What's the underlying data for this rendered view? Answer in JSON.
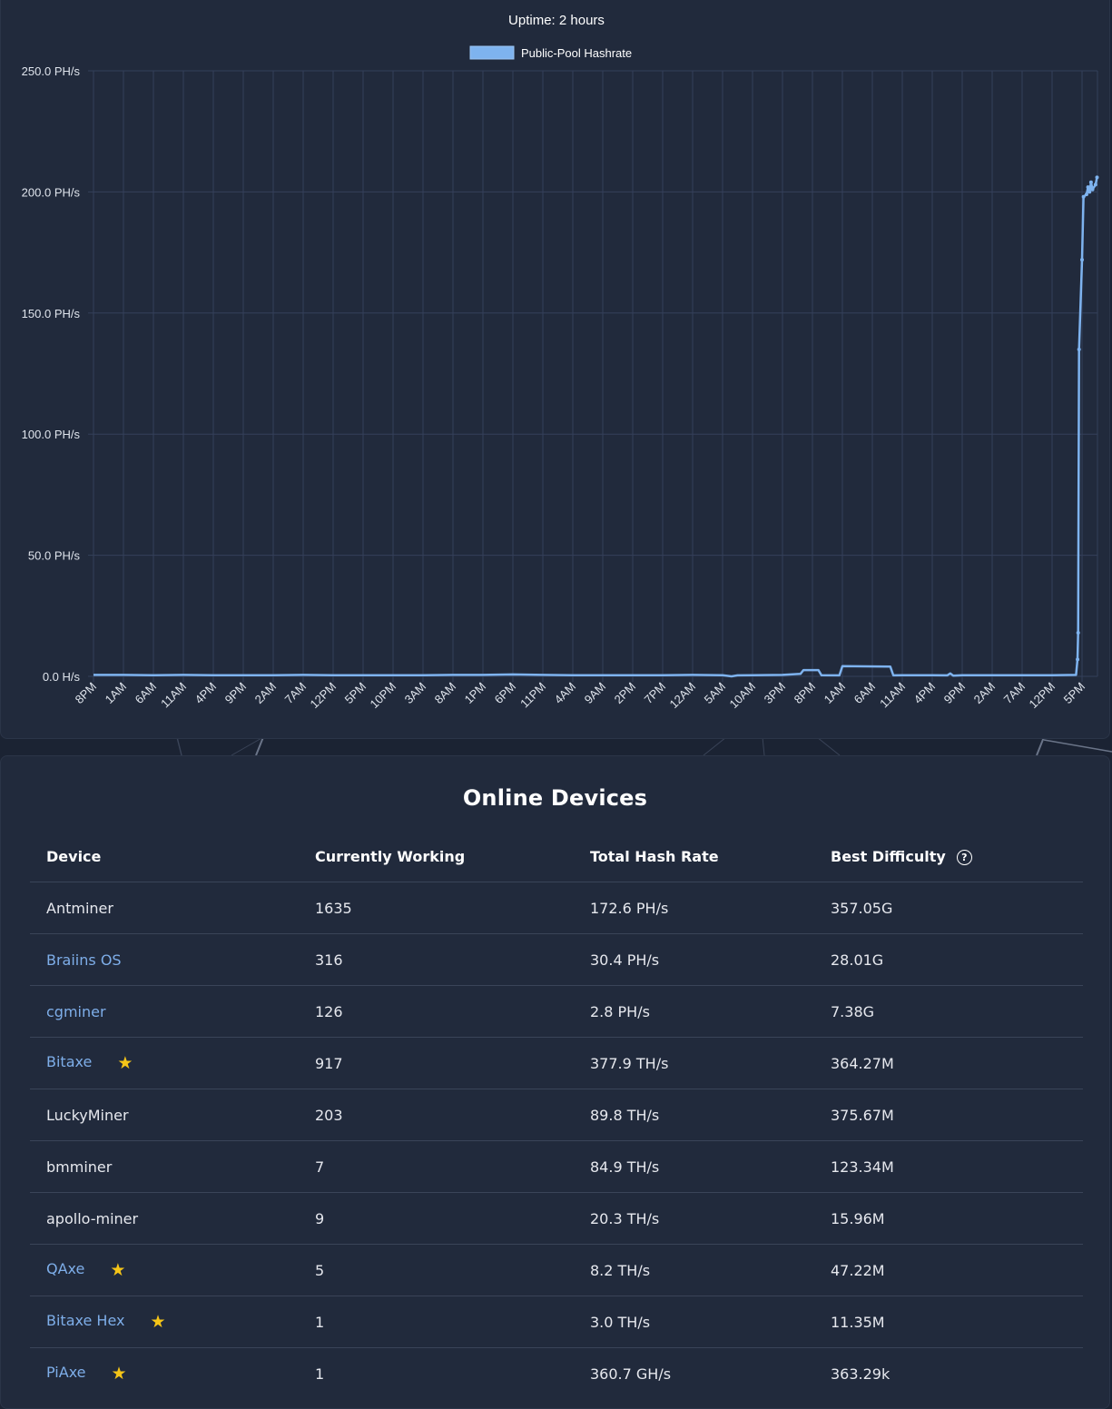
{
  "chart": {
    "title": "Uptime: 2 hours",
    "legend": "Public-Pool Hashrate"
  },
  "chart_data": {
    "type": "line",
    "title": "Uptime: 2 hours",
    "series": [
      {
        "name": "Public-Pool Hashrate",
        "color": "#7eb3ef"
      }
    ],
    "y_unit": "PH/s",
    "ylim": [
      0,
      250
    ],
    "y_ticks": [
      0,
      50,
      100,
      150,
      200,
      250
    ],
    "y_tick_labels": [
      "0.0 H/s",
      "50.0 PH/s",
      "100.0 PH/s",
      "150.0 PH/s",
      "200.0 PH/s",
      "250.0 PH/s"
    ],
    "x_tick_labels": [
      "8PM",
      "1AM",
      "6AM",
      "11AM",
      "4PM",
      "9PM",
      "2AM",
      "7AM",
      "12PM",
      "5PM",
      "10PM",
      "3AM",
      "8AM",
      "1PM",
      "6PM",
      "11PM",
      "4AM",
      "9AM",
      "2PM",
      "7PM",
      "12AM",
      "5AM",
      "10AM",
      "3PM",
      "8PM",
      "1AM",
      "6AM",
      "11AM",
      "4PM",
      "9PM",
      "2AM",
      "7AM",
      "12PM",
      "5PM"
    ],
    "points": [
      [
        0,
        0.6
      ],
      [
        1,
        0.6
      ],
      [
        2,
        0.5
      ],
      [
        3,
        0.6
      ],
      [
        4,
        0.5
      ],
      [
        5,
        0.5
      ],
      [
        6,
        0.5
      ],
      [
        7,
        0.6
      ],
      [
        8,
        0.5
      ],
      [
        9,
        0.5
      ],
      [
        10,
        0.5
      ],
      [
        11,
        0.5
      ],
      [
        12,
        0.6
      ],
      [
        13,
        0.6
      ],
      [
        14,
        0.8
      ],
      [
        15,
        0.6
      ],
      [
        16,
        0.5
      ],
      [
        17,
        0.5
      ],
      [
        18,
        0.5
      ],
      [
        19,
        0.5
      ],
      [
        20,
        0.6
      ],
      [
        21,
        0.5
      ],
      [
        21.3,
        0.0
      ],
      [
        21.5,
        0.4
      ],
      [
        22,
        0.5
      ],
      [
        23,
        0.6
      ],
      [
        23.6,
        1.0
      ],
      [
        23.7,
        2.6
      ],
      [
        24.2,
        2.6
      ],
      [
        24.3,
        0.5
      ],
      [
        24.9,
        0.4
      ],
      [
        25.0,
        4.2
      ],
      [
        26.6,
        4.0
      ],
      [
        26.7,
        0.4
      ],
      [
        27,
        0.5
      ],
      [
        28,
        0.5
      ],
      [
        28.5,
        0.4
      ],
      [
        28.6,
        1.2
      ],
      [
        28.7,
        0.3
      ],
      [
        29,
        0.5
      ],
      [
        30,
        0.5
      ],
      [
        31,
        0.5
      ],
      [
        32,
        0.5
      ],
      [
        32.8,
        0.6
      ],
      [
        32.85,
        7
      ],
      [
        32.87,
        18
      ],
      [
        32.9,
        135
      ],
      [
        33.0,
        172
      ],
      [
        33.05,
        198
      ],
      [
        33.15,
        199
      ],
      [
        33.2,
        202
      ],
      [
        33.25,
        200
      ],
      [
        33.3,
        204
      ],
      [
        33.35,
        201
      ],
      [
        33.45,
        203
      ],
      [
        33.5,
        206
      ]
    ]
  },
  "devices": {
    "title": "Online Devices",
    "headers": {
      "device": "Device",
      "working": "Currently Working",
      "hashrate": "Total Hash Rate",
      "difficulty": "Best Difficulty"
    },
    "rows": [
      {
        "name": "Antminer",
        "working": "1635",
        "hashrate": "172.6 PH/s",
        "difficulty": "357.05G",
        "link": false,
        "star": false
      },
      {
        "name": "Braiins OS",
        "working": "316",
        "hashrate": "30.4 PH/s",
        "difficulty": "28.01G",
        "link": true,
        "star": false
      },
      {
        "name": "cgminer",
        "working": "126",
        "hashrate": "2.8 PH/s",
        "difficulty": "7.38G",
        "link": true,
        "star": false
      },
      {
        "name": "Bitaxe",
        "working": "917",
        "hashrate": "377.9 TH/s",
        "difficulty": "364.27M",
        "link": true,
        "star": true
      },
      {
        "name": "LuckyMiner",
        "working": "203",
        "hashrate": "89.8 TH/s",
        "difficulty": "375.67M",
        "link": false,
        "star": false
      },
      {
        "name": "bmminer",
        "working": "7",
        "hashrate": "84.9 TH/s",
        "difficulty": "123.34M",
        "link": false,
        "star": false
      },
      {
        "name": "apollo-miner",
        "working": "9",
        "hashrate": "20.3 TH/s",
        "difficulty": "15.96M",
        "link": false,
        "star": false
      },
      {
        "name": "QAxe",
        "working": "5",
        "hashrate": "8.2 TH/s",
        "difficulty": "47.22M",
        "link": true,
        "star": true
      },
      {
        "name": "Bitaxe Hex",
        "working": "1",
        "hashrate": "3.0 TH/s",
        "difficulty": "11.35M",
        "link": true,
        "star": true
      },
      {
        "name": "PiAxe",
        "working": "1",
        "hashrate": "360.7 GH/s",
        "difficulty": "363.29k",
        "link": true,
        "star": true
      }
    ]
  }
}
